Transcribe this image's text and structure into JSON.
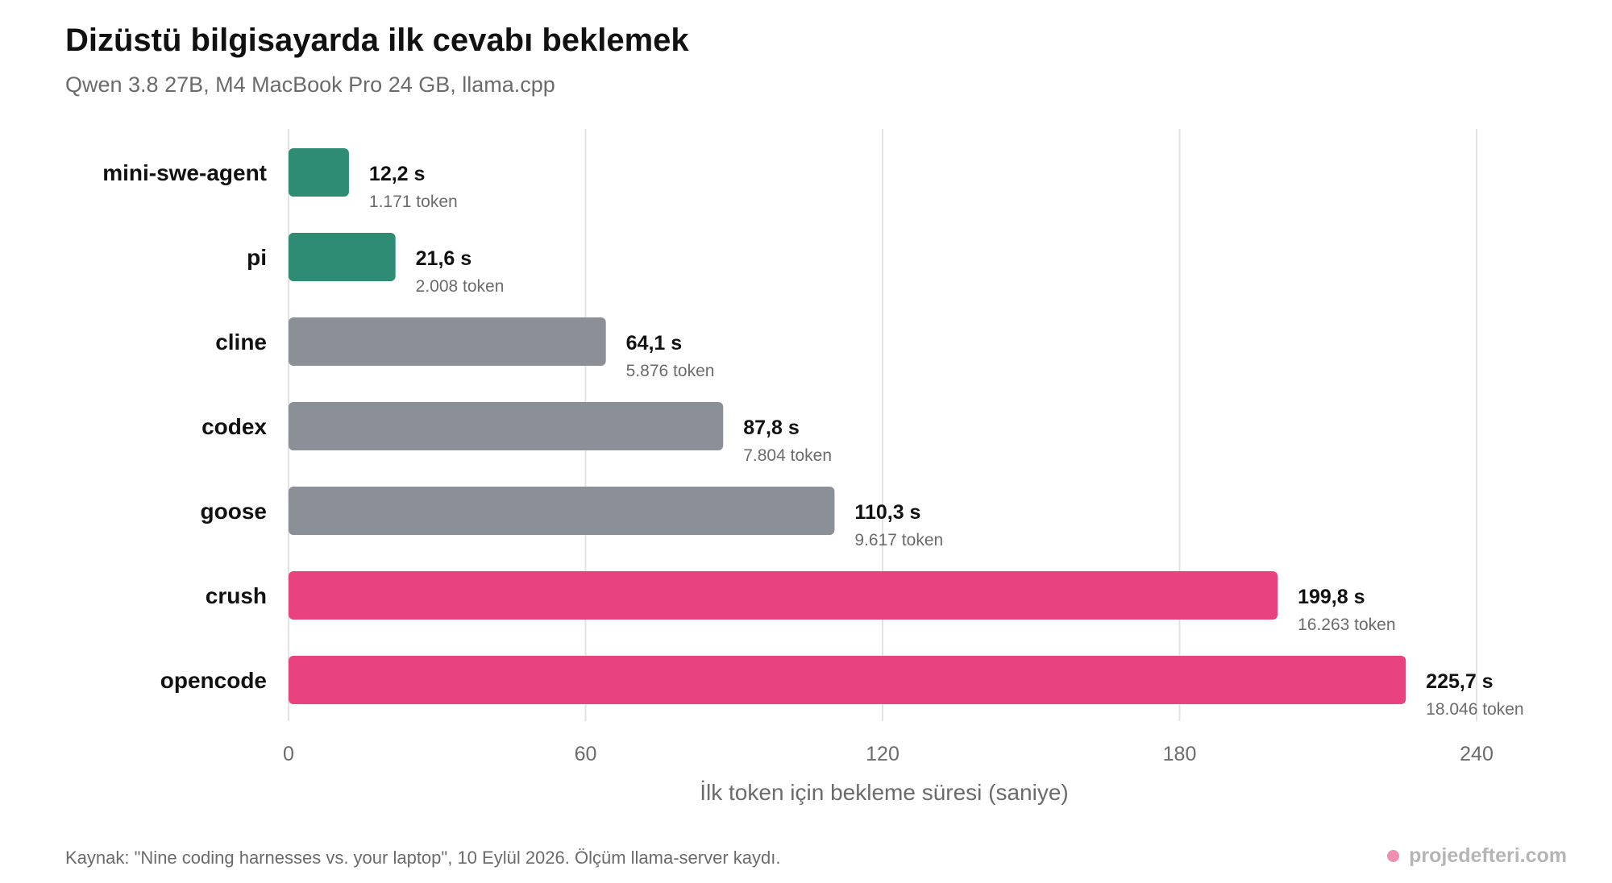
{
  "chart_data": {
    "type": "bar",
    "orientation": "horizontal",
    "title": "Dizüstü bilgisayarda ilk cevabı beklemek",
    "subtitle": "Qwen 3.8 27B, M4 MacBook Pro 24 GB, llama.cpp",
    "xlabel": "İlk token için bekleme süresi (saniye)",
    "xlim": [
      0,
      240
    ],
    "xticks": [
      0,
      60,
      120,
      180,
      240
    ],
    "grid": true,
    "categories": [
      "mini-swe-agent",
      "pi",
      "cline",
      "codex",
      "goose",
      "crush",
      "opencode"
    ],
    "values": [
      12.2,
      21.6,
      64.1,
      87.8,
      110.3,
      199.8,
      225.7
    ],
    "value_labels": [
      "12,2 s",
      "21,6 s",
      "64,1 s",
      "87,8 s",
      "110,3 s",
      "199,8 s",
      "225,7 s"
    ],
    "token_labels": [
      "1.171 token",
      "2.008 token",
      "5.876 token",
      "7.804 token",
      "9.617 token",
      "16.263 token",
      "18.046 token"
    ],
    "bar_colors": [
      "#2e8b74",
      "#2e8b74",
      "#8b8f98",
      "#8b8f98",
      "#8b8f98",
      "#e8437e",
      "#e8437e"
    ]
  },
  "footer": {
    "source": "Kaynak: \"Nine coding harnesses vs. your laptop\", 10 Eylül 2026. Ölçüm llama-server kaydı.",
    "brand": "projedefteri.com",
    "brand_dot_color": "#f08fb0"
  }
}
